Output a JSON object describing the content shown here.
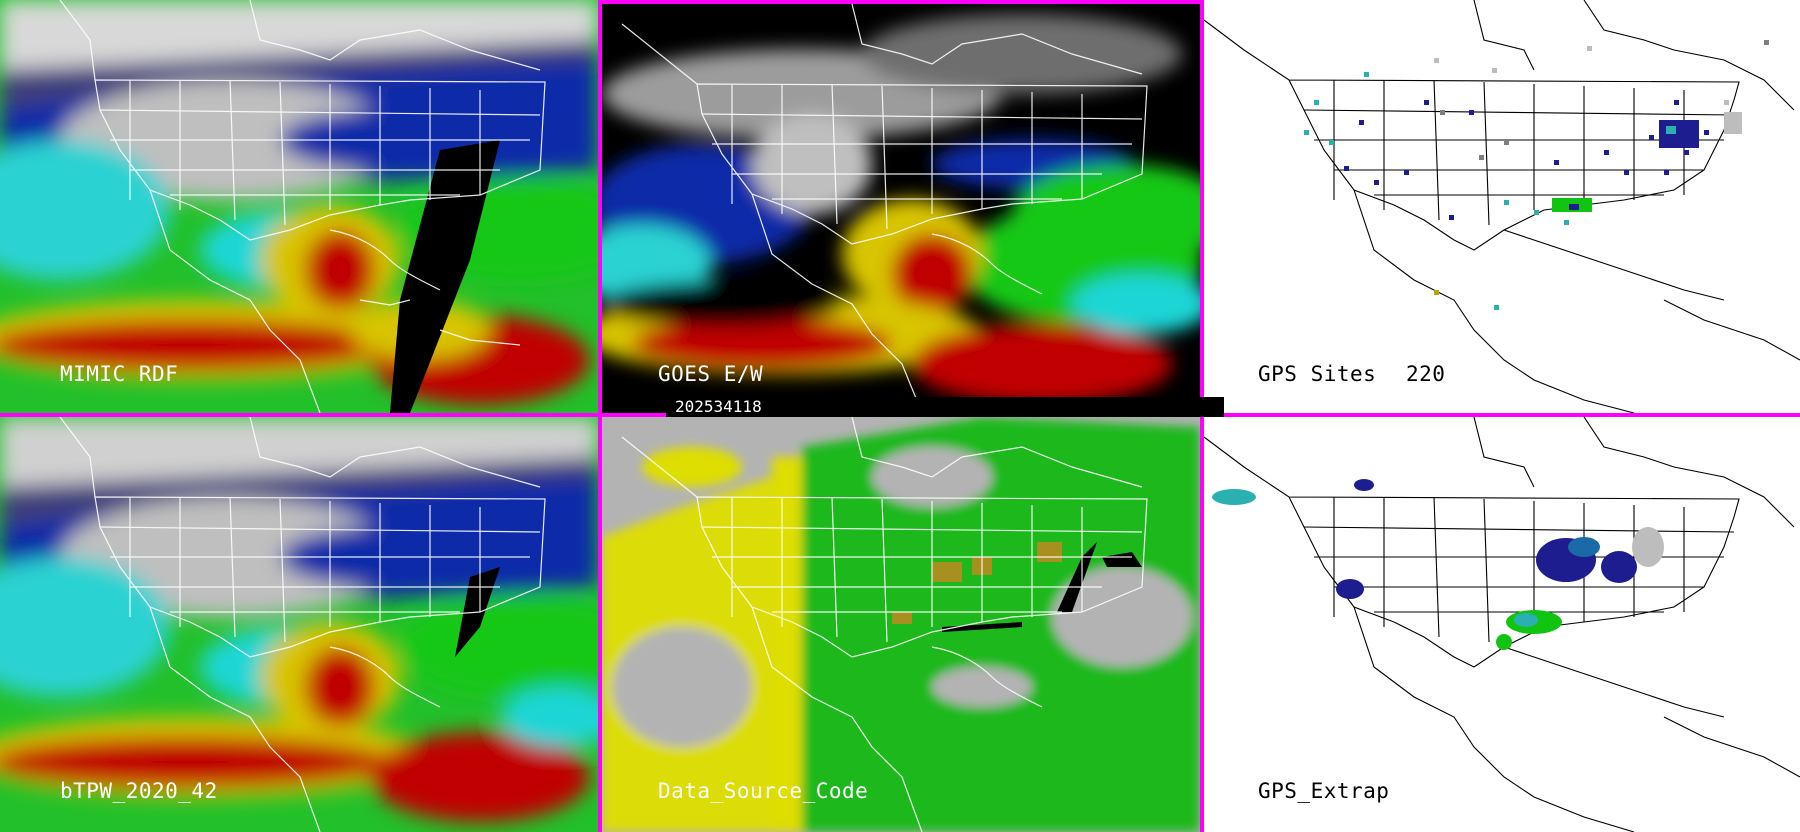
{
  "panels": {
    "mimic": {
      "label": "MIMIC RDF"
    },
    "goes": {
      "label": "GOES E/W"
    },
    "gps_sites": {
      "label": "GPS Sites",
      "count": "220"
    },
    "btpw": {
      "label": "bTPW_2020_42"
    },
    "data_source": {
      "label": "Data_Source_Code"
    },
    "gps_extrap": {
      "label": "GPS_Extrap"
    }
  },
  "timestamp": "202534118",
  "colors": {
    "divider": "#ff00ff",
    "tpw_scale": [
      "#ffffff",
      "#7f7f7f",
      "#1d1d8f",
      "#0a1fb4",
      "#1fd6d6",
      "#12c412",
      "#e0e000",
      "#c0a000",
      "#c00000",
      "#000000"
    ]
  }
}
